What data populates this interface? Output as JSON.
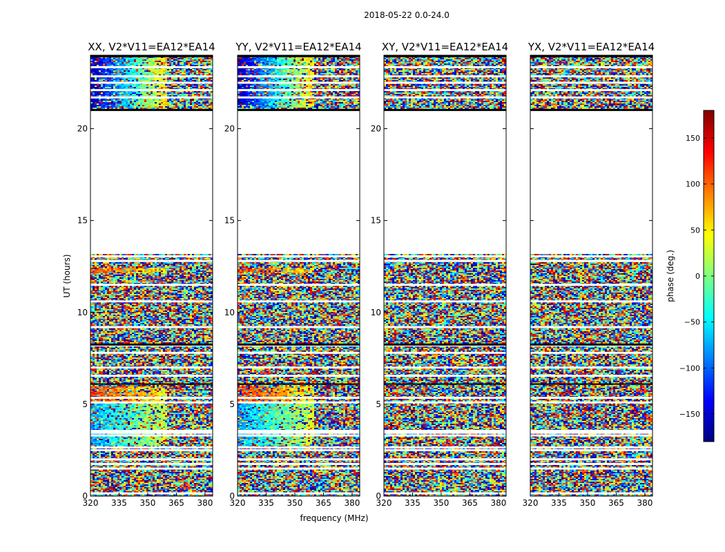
{
  "figure_title": "2018-05-22 0.0-24.0",
  "chart_data": {
    "type": "heatmap",
    "ylabel": "UT (hours)",
    "xlabel": "frequency (MHz)",
    "xlim": [
      320,
      384
    ],
    "ylim": [
      0,
      24
    ],
    "xticks": [
      320,
      335,
      350,
      365,
      380
    ],
    "yticks": [
      0,
      5,
      10,
      15,
      20
    ],
    "panels": [
      {
        "title": "XX, V2*V11=EA12*EA14",
        "structured": true,
        "show_ylabels": true
      },
      {
        "title": "YY, V2*V11=EA12*EA14",
        "structured": true,
        "show_ylabels": true
      },
      {
        "title": "XY, V2*V11=EA12*EA14",
        "structured": false,
        "show_ylabels": true
      },
      {
        "title": "YX, V2*V11=EA12*EA14",
        "structured": false,
        "show_ylabels": false
      }
    ],
    "data_hour_ranges": [
      [
        0.0,
        13.2
      ],
      [
        21.0,
        24.0
      ]
    ],
    "colorbar": {
      "label": "phase (deg.)",
      "range": [
        -180,
        180
      ],
      "ticks": [
        -150,
        -100,
        -50,
        0,
        50,
        100,
        150
      ],
      "tick_labels": [
        "−150",
        "−100",
        "−50",
        "0",
        "50",
        "100",
        "150"
      ],
      "colormap": "jet",
      "colors": [
        "#00007f",
        "#0000ff",
        "#007fff",
        "#00ffff",
        "#7fff7f",
        "#ffff00",
        "#ff7f00",
        "#ff0000",
        "#7f0000"
      ]
    },
    "grid": false
  }
}
